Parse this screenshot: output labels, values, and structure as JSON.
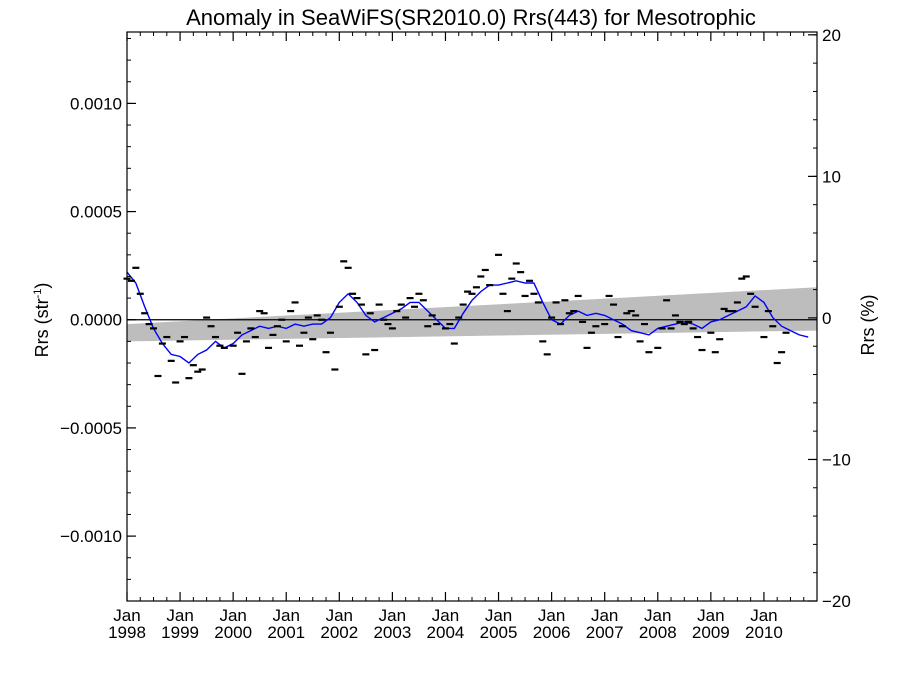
{
  "chart_data": {
    "type": "scatter",
    "title": "Anomaly in SeaWiFS(SR2010.0) Rrs(443) for Mesotrophic",
    "ylabel": {
      "base": "Rrs (str",
      "sup": "-1",
      "close": ")"
    },
    "y2label": "Rrs (%)",
    "x_range": [
      "1998-01",
      "2010-12"
    ],
    "ylim": [
      -0.0013,
      0.00133
    ],
    "y2lim": [
      -20,
      20.2
    ],
    "y_ticks": [
      {
        "value": 0.001,
        "label": "0.0010"
      },
      {
        "value": 0.0005,
        "label": "0.0005"
      },
      {
        "value": 0.0,
        "label": "0.0000"
      },
      {
        "value": -0.0005,
        "label": "−0.0005"
      },
      {
        "value": -0.001,
        "label": "−0.0010"
      }
    ],
    "y2_ticks": [
      {
        "value": 20,
        "label": "20"
      },
      {
        "value": 10,
        "label": "10"
      },
      {
        "value": 0,
        "label": "0"
      },
      {
        "value": -10,
        "label": "−10"
      },
      {
        "value": -20,
        "label": "−20"
      }
    ],
    "x_ticks": [
      {
        "value": "1998-01",
        "label": [
          "Jan",
          "1998"
        ]
      },
      {
        "value": "1999-01",
        "label": [
          "Jan",
          "1999"
        ]
      },
      {
        "value": "2000-01",
        "label": [
          "Jan",
          "2000"
        ]
      },
      {
        "value": "2001-01",
        "label": [
          "Jan",
          "2001"
        ]
      },
      {
        "value": "2002-01",
        "label": [
          "Jan",
          "2002"
        ]
      },
      {
        "value": "2003-01",
        "label": [
          "Jan",
          "2003"
        ]
      },
      {
        "value": "2004-01",
        "label": [
          "Jan",
          "2004"
        ]
      },
      {
        "value": "2005-01",
        "label": [
          "Jan",
          "2005"
        ]
      },
      {
        "value": "2006-01",
        "label": [
          "Jan",
          "2006"
        ]
      },
      {
        "value": "2007-01",
        "label": [
          "Jan",
          "2007"
        ]
      },
      {
        "value": "2008-01",
        "label": [
          "Jan",
          "2008"
        ]
      },
      {
        "value": "2009-01",
        "label": [
          "Jan",
          "2009"
        ]
      },
      {
        "value": "2010-01",
        "label": [
          "Jan",
          "2010"
        ]
      }
    ],
    "trend_band": {
      "start": [
        "1998-01",
        -0.0001,
        -2e-05
      ],
      "end": [
        "2010-12",
        -5e-05,
        0.00015
      ]
    },
    "zero_line": 0,
    "points": [
      {
        "x": "1998-01",
        "y": 0.00019
      },
      {
        "x": "1998-02",
        "y": 0.00018
      },
      {
        "x": "1998-03",
        "y": 0.00024
      },
      {
        "x": "1998-04",
        "y": 0.00012
      },
      {
        "x": "1998-05",
        "y": 3e-05
      },
      {
        "x": "1998-06",
        "y": -2e-05
      },
      {
        "x": "1998-07",
        "y": -4e-05
      },
      {
        "x": "1998-08",
        "y": -0.00026
      },
      {
        "x": "1998-09",
        "y": -0.00011
      },
      {
        "x": "1998-10",
        "y": -8e-05
      },
      {
        "x": "1998-11",
        "y": -0.00019
      },
      {
        "x": "1998-12",
        "y": -0.00029
      },
      {
        "x": "1999-01",
        "y": -0.0001
      },
      {
        "x": "1999-02",
        "y": -8e-05
      },
      {
        "x": "1999-03",
        "y": -0.00027
      },
      {
        "x": "1999-04",
        "y": -0.00021
      },
      {
        "x": "1999-05",
        "y": -0.00024
      },
      {
        "x": "1999-06",
        "y": -0.00023
      },
      {
        "x": "1999-07",
        "y": 1e-05
      },
      {
        "x": "1999-08",
        "y": -3e-05
      },
      {
        "x": "1999-09",
        "y": -8e-05
      },
      {
        "x": "1999-10",
        "y": -0.00012
      },
      {
        "x": "1999-11",
        "y": -0.00013
      },
      {
        "x": "2000-01",
        "y": -0.00012
      },
      {
        "x": "2000-02",
        "y": -6e-05
      },
      {
        "x": "2000-03",
        "y": -0.00025
      },
      {
        "x": "2000-04",
        "y": -0.0001
      },
      {
        "x": "2000-05",
        "y": -4e-05
      },
      {
        "x": "2000-06",
        "y": -8e-05
      },
      {
        "x": "2000-07",
        "y": 4e-05
      },
      {
        "x": "2000-08",
        "y": 3e-05
      },
      {
        "x": "2000-09",
        "y": -0.00013
      },
      {
        "x": "2000-10",
        "y": -7e-05
      },
      {
        "x": "2000-11",
        "y": -3e-05
      },
      {
        "x": "2000-12",
        "y": 0.0
      },
      {
        "x": "2001-01",
        "y": -0.0001
      },
      {
        "x": "2001-02",
        "y": 4e-05
      },
      {
        "x": "2001-03",
        "y": 8e-05
      },
      {
        "x": "2001-04",
        "y": -0.00012
      },
      {
        "x": "2001-05",
        "y": -6e-05
      },
      {
        "x": "2001-06",
        "y": 1e-05
      },
      {
        "x": "2001-07",
        "y": -9e-05
      },
      {
        "x": "2001-08",
        "y": 2e-05
      },
      {
        "x": "2001-09",
        "y": 0.0
      },
      {
        "x": "2001-10",
        "y": -0.00015
      },
      {
        "x": "2001-11",
        "y": -6e-05
      },
      {
        "x": "2001-12",
        "y": -0.00023
      },
      {
        "x": "2002-01",
        "y": 6e-05
      },
      {
        "x": "2002-02",
        "y": 0.00027
      },
      {
        "x": "2002-03",
        "y": 0.00024
      },
      {
        "x": "2002-04",
        "y": 0.00012
      },
      {
        "x": "2002-05",
        "y": 0.0001
      },
      {
        "x": "2002-06",
        "y": 7e-05
      },
      {
        "x": "2002-07",
        "y": -0.00016
      },
      {
        "x": "2002-08",
        "y": 3e-05
      },
      {
        "x": "2002-09",
        "y": -0.00014
      },
      {
        "x": "2002-10",
        "y": 7e-05
      },
      {
        "x": "2002-11",
        "y": 0.0
      },
      {
        "x": "2002-12",
        "y": -2e-05
      },
      {
        "x": "2003-01",
        "y": -4e-05
      },
      {
        "x": "2003-02",
        "y": 4e-05
      },
      {
        "x": "2003-03",
        "y": 7e-05
      },
      {
        "x": "2003-04",
        "y": 1e-05
      },
      {
        "x": "2003-05",
        "y": 0.0001
      },
      {
        "x": "2003-06",
        "y": 6e-05
      },
      {
        "x": "2003-07",
        "y": 0.00012
      },
      {
        "x": "2003-08",
        "y": 9e-05
      },
      {
        "x": "2003-09",
        "y": -3e-05
      },
      {
        "x": "2003-10",
        "y": 2e-05
      },
      {
        "x": "2003-11",
        "y": -2e-05
      },
      {
        "x": "2004-01",
        "y": -4e-05
      },
      {
        "x": "2004-02",
        "y": -2e-05
      },
      {
        "x": "2004-03",
        "y": -0.00011
      },
      {
        "x": "2004-04",
        "y": 1e-05
      },
      {
        "x": "2004-05",
        "y": 7e-05
      },
      {
        "x": "2004-06",
        "y": 0.00013
      },
      {
        "x": "2004-07",
        "y": 0.00012
      },
      {
        "x": "2004-08",
        "y": 0.00015
      },
      {
        "x": "2004-09",
        "y": 0.0002
      },
      {
        "x": "2004-10",
        "y": 0.00023
      },
      {
        "x": "2004-11",
        "y": 0.00016
      },
      {
        "x": "2005-01",
        "y": 0.0003
      },
      {
        "x": "2005-02",
        "y": 0.00012
      },
      {
        "x": "2005-03",
        "y": 4e-05
      },
      {
        "x": "2005-04",
        "y": 0.00019
      },
      {
        "x": "2005-05",
        "y": 0.00026
      },
      {
        "x": "2005-06",
        "y": 0.00022
      },
      {
        "x": "2005-07",
        "y": 0.00011
      },
      {
        "x": "2005-08",
        "y": 0.00018
      },
      {
        "x": "2005-09",
        "y": 0.00012
      },
      {
        "x": "2005-10",
        "y": 8e-05
      },
      {
        "x": "2005-11",
        "y": -0.0001
      },
      {
        "x": "2005-12",
        "y": -0.00016
      },
      {
        "x": "2006-01",
        "y": 1e-05
      },
      {
        "x": "2006-02",
        "y": 8e-05
      },
      {
        "x": "2006-03",
        "y": -2e-05
      },
      {
        "x": "2006-04",
        "y": 9e-05
      },
      {
        "x": "2006-05",
        "y": 3e-05
      },
      {
        "x": "2006-06",
        "y": 4e-05
      },
      {
        "x": "2006-07",
        "y": 0.00011
      },
      {
        "x": "2006-08",
        "y": -1e-05
      },
      {
        "x": "2006-09",
        "y": -0.00013
      },
      {
        "x": "2006-10",
        "y": -6e-05
      },
      {
        "x": "2006-11",
        "y": -3e-05
      },
      {
        "x": "2007-01",
        "y": -2e-05
      },
      {
        "x": "2007-02",
        "y": 0.00011
      },
      {
        "x": "2007-03",
        "y": 7e-05
      },
      {
        "x": "2007-04",
        "y": -8e-05
      },
      {
        "x": "2007-05",
        "y": -3e-05
      },
      {
        "x": "2007-06",
        "y": 3e-05
      },
      {
        "x": "2007-07",
        "y": 4e-05
      },
      {
        "x": "2007-08",
        "y": 2e-05
      },
      {
        "x": "2007-09",
        "y": -0.0001
      },
      {
        "x": "2007-10",
        "y": -2e-05
      },
      {
        "x": "2007-11",
        "y": -0.00015
      },
      {
        "x": "2008-01",
        "y": -0.00013
      },
      {
        "x": "2008-02",
        "y": -4e-05
      },
      {
        "x": "2008-03",
        "y": 9e-05
      },
      {
        "x": "2008-04",
        "y": -4e-05
      },
      {
        "x": "2008-05",
        "y": 2e-05
      },
      {
        "x": "2008-06",
        "y": -1e-05
      },
      {
        "x": "2008-07",
        "y": -2e-05
      },
      {
        "x": "2008-08",
        "y": -1e-05
      },
      {
        "x": "2008-09",
        "y": -4e-05
      },
      {
        "x": "2008-10",
        "y": -8e-05
      },
      {
        "x": "2008-11",
        "y": -0.00014
      },
      {
        "x": "2009-01",
        "y": -6e-05
      },
      {
        "x": "2009-02",
        "y": -0.00015
      },
      {
        "x": "2009-03",
        "y": -9e-05
      },
      {
        "x": "2009-04",
        "y": 5e-05
      },
      {
        "x": "2009-05",
        "y": 4e-05
      },
      {
        "x": "2009-06",
        "y": 4e-05
      },
      {
        "x": "2009-07",
        "y": 8e-05
      },
      {
        "x": "2009-08",
        "y": 0.00019
      },
      {
        "x": "2009-09",
        "y": 0.0002
      },
      {
        "x": "2009-10",
        "y": 0.00012
      },
      {
        "x": "2009-11",
        "y": 6e-05
      },
      {
        "x": "2010-01",
        "y": -8e-05
      },
      {
        "x": "2010-02",
        "y": 4e-05
      },
      {
        "x": "2010-03",
        "y": -3e-05
      },
      {
        "x": "2010-04",
        "y": -0.0002
      },
      {
        "x": "2010-05",
        "y": -0.00015
      },
      {
        "x": "2010-06",
        "y": -6e-05
      }
    ],
    "running_mean": {
      "color": "#0000ff",
      "points": [
        {
          "x": "1998-01",
          "y": 0.00022
        },
        {
          "x": "1998-03",
          "y": 0.00017
        },
        {
          "x": "1998-05",
          "y": 6e-05
        },
        {
          "x": "1998-07",
          "y": -4e-05
        },
        {
          "x": "1998-09",
          "y": -0.00011
        },
        {
          "x": "1998-11",
          "y": -0.00016
        },
        {
          "x": "1999-01",
          "y": -0.00017
        },
        {
          "x": "1999-03",
          "y": -0.0002
        },
        {
          "x": "1999-05",
          "y": -0.00016
        },
        {
          "x": "1999-07",
          "y": -0.00014
        },
        {
          "x": "1999-09",
          "y": -0.0001
        },
        {
          "x": "1999-11",
          "y": -0.00013
        },
        {
          "x": "2000-01",
          "y": -0.00011
        },
        {
          "x": "2000-03",
          "y": -7e-05
        },
        {
          "x": "2000-05",
          "y": -5e-05
        },
        {
          "x": "2000-07",
          "y": -3e-05
        },
        {
          "x": "2000-09",
          "y": -4e-05
        },
        {
          "x": "2000-11",
          "y": -3e-05
        },
        {
          "x": "2001-01",
          "y": -4e-05
        },
        {
          "x": "2001-03",
          "y": -2e-05
        },
        {
          "x": "2001-05",
          "y": -3e-05
        },
        {
          "x": "2001-07",
          "y": -2e-05
        },
        {
          "x": "2001-09",
          "y": -2e-05
        },
        {
          "x": "2001-11",
          "y": 1e-05
        },
        {
          "x": "2002-01",
          "y": 8e-05
        },
        {
          "x": "2002-03",
          "y": 0.00012
        },
        {
          "x": "2002-05",
          "y": 8e-05
        },
        {
          "x": "2002-07",
          "y": 2e-05
        },
        {
          "x": "2002-09",
          "y": -1e-05
        },
        {
          "x": "2002-11",
          "y": 1e-05
        },
        {
          "x": "2003-01",
          "y": 3e-05
        },
        {
          "x": "2003-03",
          "y": 5e-05
        },
        {
          "x": "2003-05",
          "y": 8e-05
        },
        {
          "x": "2003-07",
          "y": 8e-05
        },
        {
          "x": "2003-09",
          "y": 4e-05
        },
        {
          "x": "2003-11",
          "y": 0.0
        },
        {
          "x": "2004-01",
          "y": -4e-05
        },
        {
          "x": "2004-03",
          "y": -4e-05
        },
        {
          "x": "2004-05",
          "y": 3e-05
        },
        {
          "x": "2004-07",
          "y": 9e-05
        },
        {
          "x": "2004-09",
          "y": 0.00013
        },
        {
          "x": "2004-11",
          "y": 0.00016
        },
        {
          "x": "2005-01",
          "y": 0.00016
        },
        {
          "x": "2005-03",
          "y": 0.00017
        },
        {
          "x": "2005-05",
          "y": 0.00018
        },
        {
          "x": "2005-07",
          "y": 0.00017
        },
        {
          "x": "2005-09",
          "y": 0.00017
        },
        {
          "x": "2005-11",
          "y": 8e-05
        },
        {
          "x": "2006-01",
          "y": 0.0
        },
        {
          "x": "2006-03",
          "y": -2e-05
        },
        {
          "x": "2006-05",
          "y": 2e-05
        },
        {
          "x": "2006-07",
          "y": 4e-05
        },
        {
          "x": "2006-09",
          "y": 2e-05
        },
        {
          "x": "2006-11",
          "y": 3e-05
        },
        {
          "x": "2007-01",
          "y": 2e-05
        },
        {
          "x": "2007-03",
          "y": 0.0
        },
        {
          "x": "2007-05",
          "y": -2e-05
        },
        {
          "x": "2007-07",
          "y": -5e-05
        },
        {
          "x": "2007-09",
          "y": -6e-05
        },
        {
          "x": "2007-11",
          "y": -7e-05
        },
        {
          "x": "2008-01",
          "y": -4e-05
        },
        {
          "x": "2008-03",
          "y": -3e-05
        },
        {
          "x": "2008-05",
          "y": -2e-05
        },
        {
          "x": "2008-07",
          "y": -1e-05
        },
        {
          "x": "2008-09",
          "y": -2e-05
        },
        {
          "x": "2008-11",
          "y": -4e-05
        },
        {
          "x": "2009-01",
          "y": -1e-05
        },
        {
          "x": "2009-03",
          "y": 0.0
        },
        {
          "x": "2009-05",
          "y": 2e-05
        },
        {
          "x": "2009-07",
          "y": 4e-05
        },
        {
          "x": "2009-09",
          "y": 6e-05
        },
        {
          "x": "2009-11",
          "y": 0.00011
        },
        {
          "x": "2010-01",
          "y": 8e-05
        },
        {
          "x": "2010-03",
          "y": 1e-05
        },
        {
          "x": "2010-05",
          "y": -3e-05
        },
        {
          "x": "2010-07",
          "y": -5e-05
        },
        {
          "x": "2010-09",
          "y": -7e-05
        },
        {
          "x": "2010-11",
          "y": -8e-05
        }
      ]
    },
    "band_color": "#bdbdbd",
    "point_color": "#000000"
  }
}
